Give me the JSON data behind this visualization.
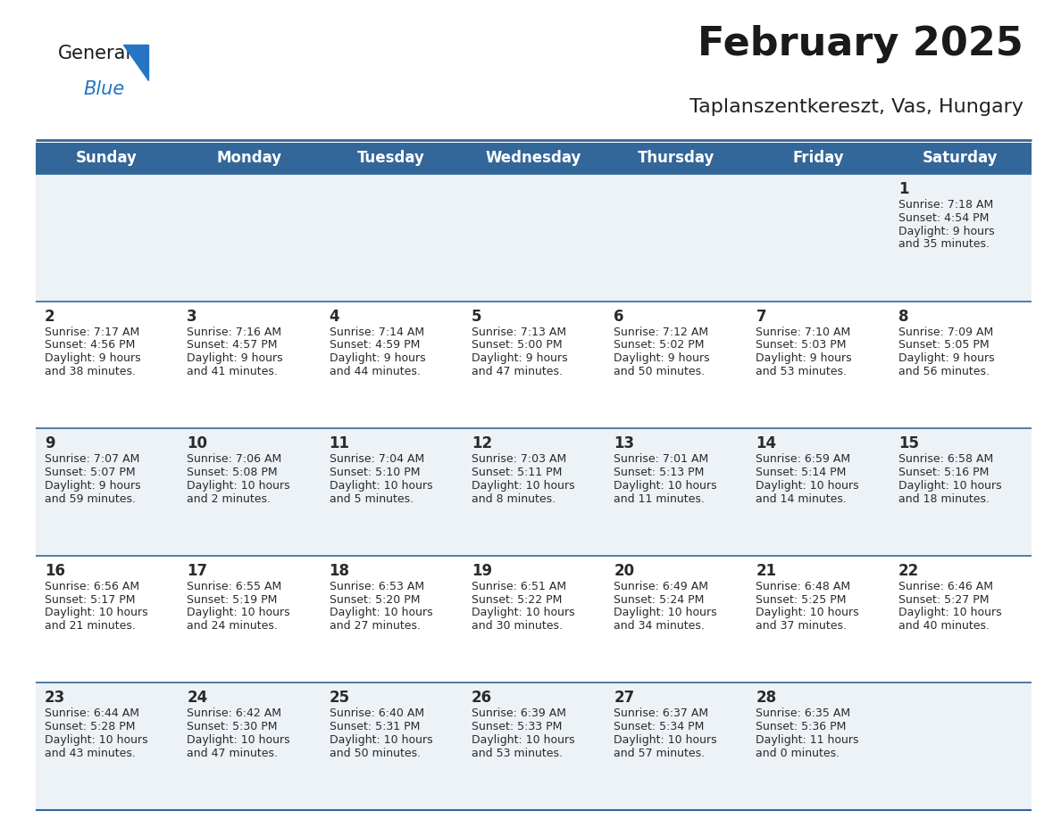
{
  "title": "February 2025",
  "subtitle": "Taplanszentkereszt, Vas, Hungary",
  "header_bg": "#336699",
  "header_text": "#ffffff",
  "row_bg_odd": "#edf2f7",
  "row_bg_even": "#ffffff",
  "separator_color": "#336699",
  "day_names": [
    "Sunday",
    "Monday",
    "Tuesday",
    "Wednesday",
    "Thursday",
    "Friday",
    "Saturday"
  ],
  "days": [
    {
      "day": 1,
      "col": 6,
      "row": 0,
      "sunrise": "7:18 AM",
      "sunset": "4:54 PM",
      "daylight": "9 hours and 35 minutes."
    },
    {
      "day": 2,
      "col": 0,
      "row": 1,
      "sunrise": "7:17 AM",
      "sunset": "4:56 PM",
      "daylight": "9 hours and 38 minutes."
    },
    {
      "day": 3,
      "col": 1,
      "row": 1,
      "sunrise": "7:16 AM",
      "sunset": "4:57 PM",
      "daylight": "9 hours and 41 minutes."
    },
    {
      "day": 4,
      "col": 2,
      "row": 1,
      "sunrise": "7:14 AM",
      "sunset": "4:59 PM",
      "daylight": "9 hours and 44 minutes."
    },
    {
      "day": 5,
      "col": 3,
      "row": 1,
      "sunrise": "7:13 AM",
      "sunset": "5:00 PM",
      "daylight": "9 hours and 47 minutes."
    },
    {
      "day": 6,
      "col": 4,
      "row": 1,
      "sunrise": "7:12 AM",
      "sunset": "5:02 PM",
      "daylight": "9 hours and 50 minutes."
    },
    {
      "day": 7,
      "col": 5,
      "row": 1,
      "sunrise": "7:10 AM",
      "sunset": "5:03 PM",
      "daylight": "9 hours and 53 minutes."
    },
    {
      "day": 8,
      "col": 6,
      "row": 1,
      "sunrise": "7:09 AM",
      "sunset": "5:05 PM",
      "daylight": "9 hours and 56 minutes."
    },
    {
      "day": 9,
      "col": 0,
      "row": 2,
      "sunrise": "7:07 AM",
      "sunset": "5:07 PM",
      "daylight": "9 hours and 59 minutes."
    },
    {
      "day": 10,
      "col": 1,
      "row": 2,
      "sunrise": "7:06 AM",
      "sunset": "5:08 PM",
      "daylight": "10 hours and 2 minutes."
    },
    {
      "day": 11,
      "col": 2,
      "row": 2,
      "sunrise": "7:04 AM",
      "sunset": "5:10 PM",
      "daylight": "10 hours and 5 minutes."
    },
    {
      "day": 12,
      "col": 3,
      "row": 2,
      "sunrise": "7:03 AM",
      "sunset": "5:11 PM",
      "daylight": "10 hours and 8 minutes."
    },
    {
      "day": 13,
      "col": 4,
      "row": 2,
      "sunrise": "7:01 AM",
      "sunset": "5:13 PM",
      "daylight": "10 hours and 11 minutes."
    },
    {
      "day": 14,
      "col": 5,
      "row": 2,
      "sunrise": "6:59 AM",
      "sunset": "5:14 PM",
      "daylight": "10 hours and 14 minutes."
    },
    {
      "day": 15,
      "col": 6,
      "row": 2,
      "sunrise": "6:58 AM",
      "sunset": "5:16 PM",
      "daylight": "10 hours and 18 minutes."
    },
    {
      "day": 16,
      "col": 0,
      "row": 3,
      "sunrise": "6:56 AM",
      "sunset": "5:17 PM",
      "daylight": "10 hours and 21 minutes."
    },
    {
      "day": 17,
      "col": 1,
      "row": 3,
      "sunrise": "6:55 AM",
      "sunset": "5:19 PM",
      "daylight": "10 hours and 24 minutes."
    },
    {
      "day": 18,
      "col": 2,
      "row": 3,
      "sunrise": "6:53 AM",
      "sunset": "5:20 PM",
      "daylight": "10 hours and 27 minutes."
    },
    {
      "day": 19,
      "col": 3,
      "row": 3,
      "sunrise": "6:51 AM",
      "sunset": "5:22 PM",
      "daylight": "10 hours and 30 minutes."
    },
    {
      "day": 20,
      "col": 4,
      "row": 3,
      "sunrise": "6:49 AM",
      "sunset": "5:24 PM",
      "daylight": "10 hours and 34 minutes."
    },
    {
      "day": 21,
      "col": 5,
      "row": 3,
      "sunrise": "6:48 AM",
      "sunset": "5:25 PM",
      "daylight": "10 hours and 37 minutes."
    },
    {
      "day": 22,
      "col": 6,
      "row": 3,
      "sunrise": "6:46 AM",
      "sunset": "5:27 PM",
      "daylight": "10 hours and 40 minutes."
    },
    {
      "day": 23,
      "col": 0,
      "row": 4,
      "sunrise": "6:44 AM",
      "sunset": "5:28 PM",
      "daylight": "10 hours and 43 minutes."
    },
    {
      "day": 24,
      "col": 1,
      "row": 4,
      "sunrise": "6:42 AM",
      "sunset": "5:30 PM",
      "daylight": "10 hours and 47 minutes."
    },
    {
      "day": 25,
      "col": 2,
      "row": 4,
      "sunrise": "6:40 AM",
      "sunset": "5:31 PM",
      "daylight": "10 hours and 50 minutes."
    },
    {
      "day": 26,
      "col": 3,
      "row": 4,
      "sunrise": "6:39 AM",
      "sunset": "5:33 PM",
      "daylight": "10 hours and 53 minutes."
    },
    {
      "day": 27,
      "col": 4,
      "row": 4,
      "sunrise": "6:37 AM",
      "sunset": "5:34 PM",
      "daylight": "10 hours and 57 minutes."
    },
    {
      "day": 28,
      "col": 5,
      "row": 4,
      "sunrise": "6:35 AM",
      "sunset": "5:36 PM",
      "daylight": "11 hours and 0 minutes."
    }
  ],
  "num_rows": 5,
  "num_cols": 7,
  "title_fontsize": 32,
  "subtitle_fontsize": 16,
  "header_fontsize": 12,
  "day_num_fontsize": 12,
  "cell_text_fontsize": 9,
  "logo_color_general": "#1a1a1a",
  "logo_color_blue": "#2575c4",
  "logo_triangle_color": "#2575c4"
}
